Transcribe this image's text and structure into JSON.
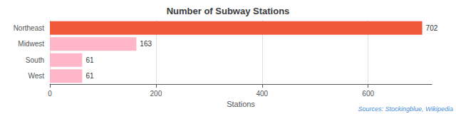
{
  "chart_data": {
    "type": "bar",
    "orientation": "horizontal",
    "title": "Number of Subway Stations",
    "categories": [
      "Northeast",
      "Midwest",
      "South",
      "West"
    ],
    "values": [
      702,
      163,
      61,
      61
    ],
    "colors": [
      "#f05a3a",
      "#ffb6c8",
      "#ffb6c8",
      "#ffb6c8"
    ],
    "xlabel": "Stations",
    "xlim": [
      0,
      720
    ],
    "xticks": [
      0,
      200,
      400,
      600
    ],
    "grid": true,
    "data_labels": true,
    "annotation": "Sources: Stockingblue, Wikipedia"
  }
}
